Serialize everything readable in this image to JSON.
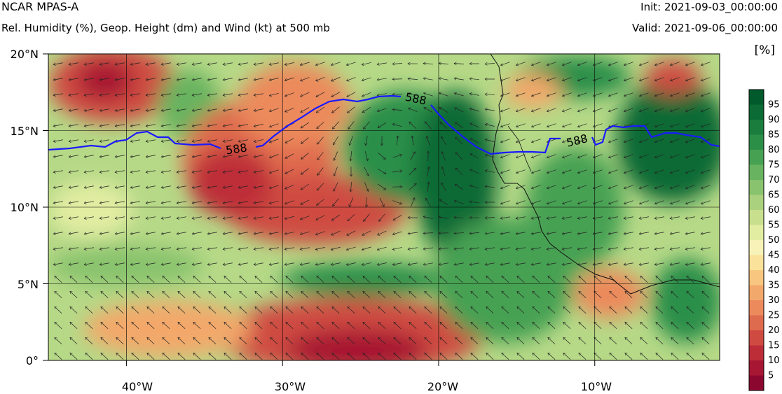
{
  "header": {
    "title": "NCAR MPAS-A",
    "subtitle": "Rel. Humidity (%), Geop. Height (dm) and Wind (kt) at 500 mb",
    "init": "Init: 2021-09-03_00:00:00",
    "valid": "Valid: 2021-09-06_00:00:00"
  },
  "map": {
    "lat_labels": [
      "20°N",
      "15°N",
      "10°N",
      "5°N",
      "0°"
    ],
    "lon_labels": [
      "40°W",
      "30°W",
      "20°W",
      "10°W"
    ],
    "lat_values": [
      20,
      15,
      10,
      5,
      0
    ],
    "lon_values": [
      -40,
      -30,
      -20,
      -10
    ],
    "lon_range": [
      -45,
      -2
    ],
    "lat_range": [
      0,
      20
    ],
    "contour_label": "588",
    "contour_color": "#1a1aff",
    "coastline_color": "#000000"
  },
  "colorbar": {
    "unit": "[%]",
    "labels": [
      "95",
      "90",
      "85",
      "80",
      "75",
      "70",
      "65",
      "60",
      "55",
      "50",
      "45",
      "40",
      "35",
      "30",
      "25",
      "20",
      "15",
      "10",
      "5"
    ],
    "colors": [
      "#005a2c",
      "#0b6b34",
      "#1a7d3d",
      "#2c8f48",
      "#47a152",
      "#67b35f",
      "#89c36d",
      "#aad17d",
      "#c8e08e",
      "#e2eda2",
      "#f7f2b7",
      "#fbe29a",
      "#f8c67e",
      "#f3a86b",
      "#ec8a5c",
      "#df6b4e",
      "#cf4b42",
      "#bd2d38",
      "#a71633",
      "#8c0730"
    ]
  }
}
